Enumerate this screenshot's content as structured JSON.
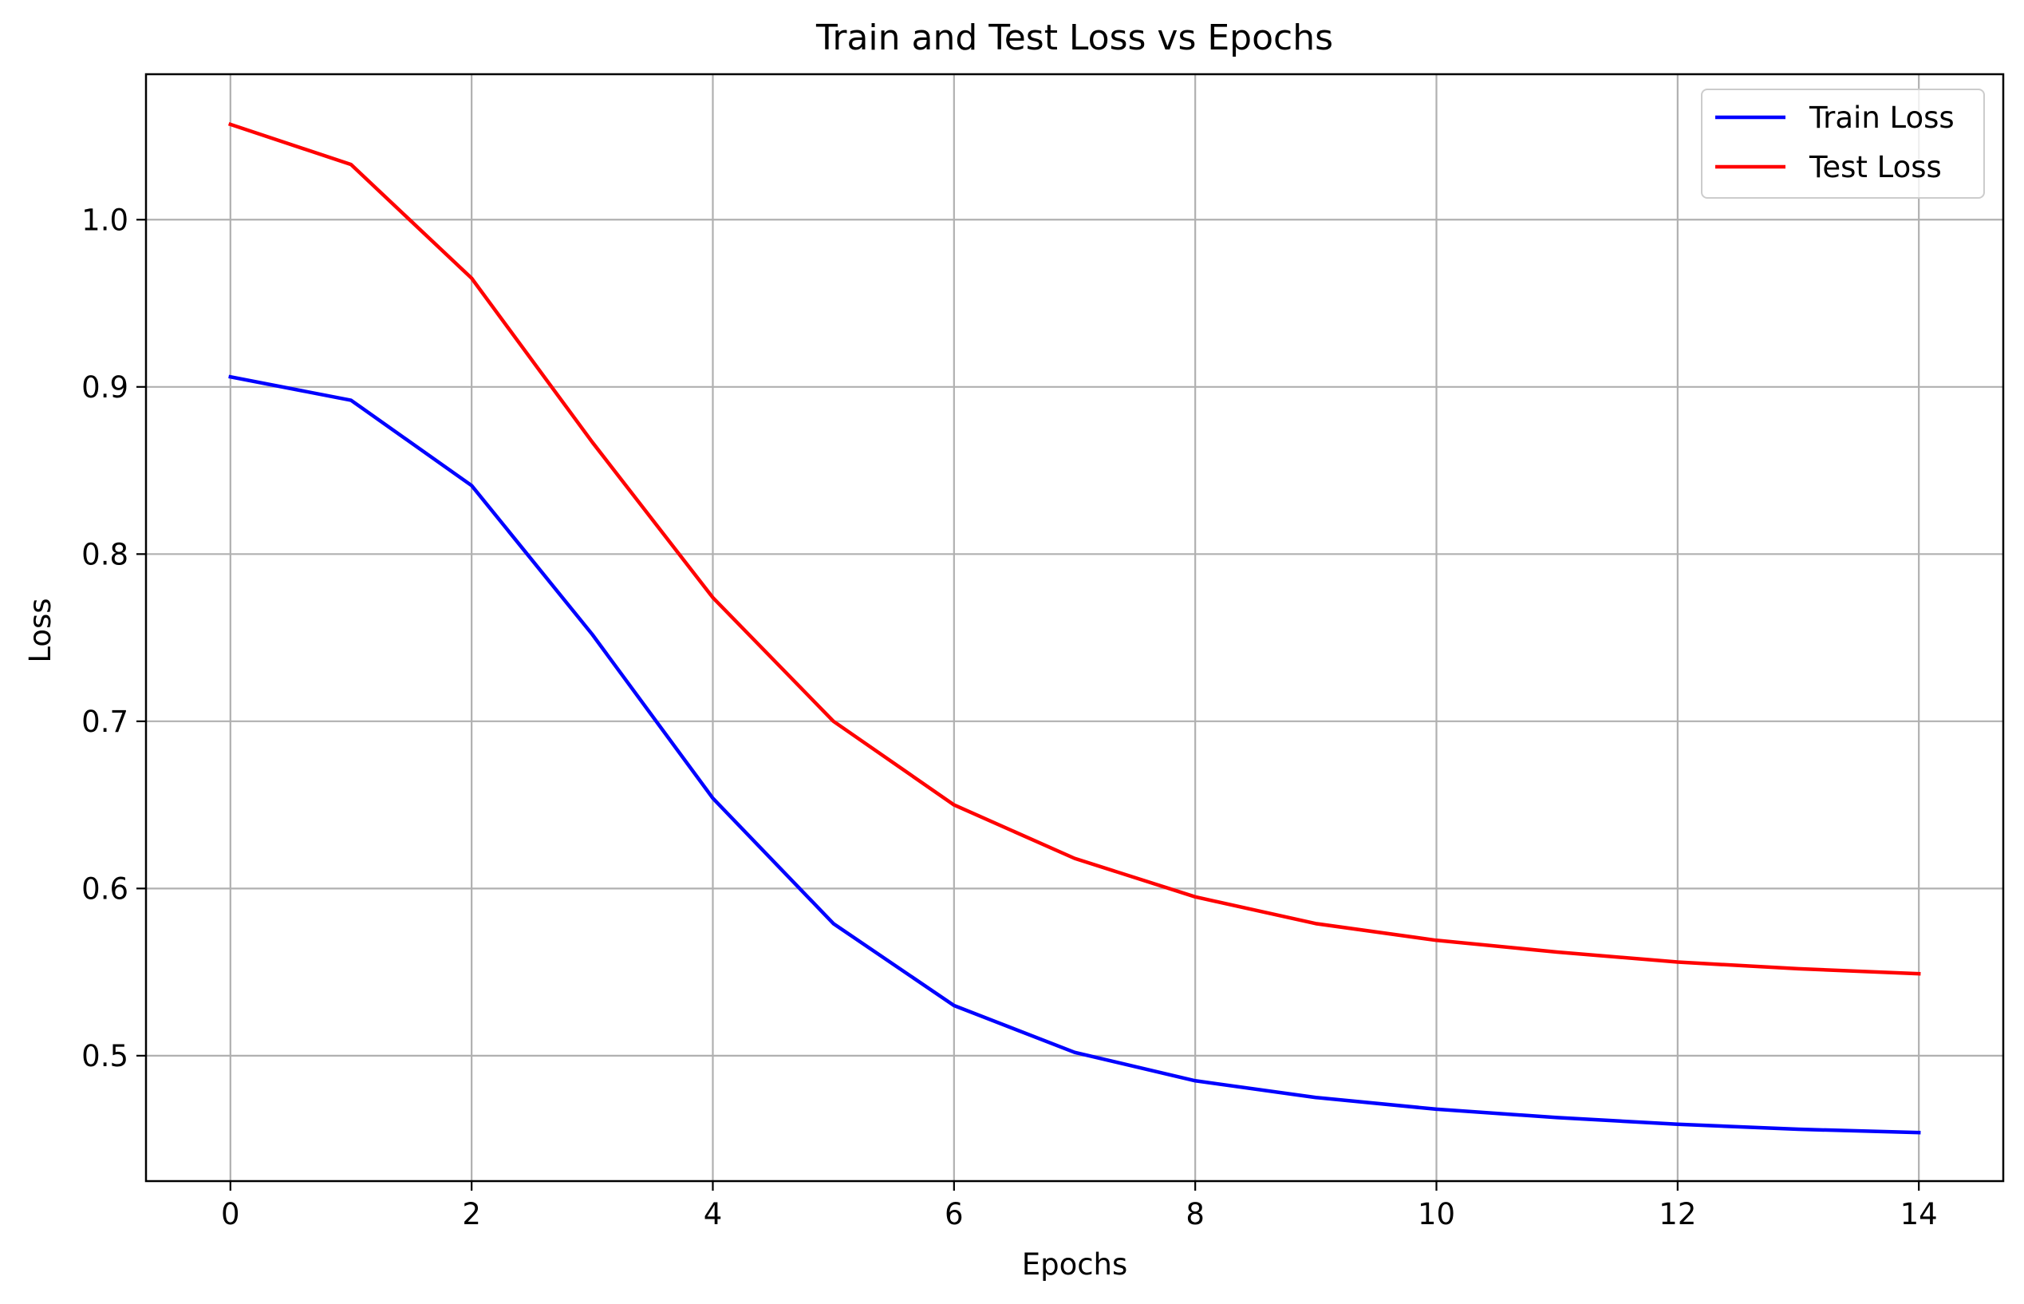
{
  "chart_data": {
    "type": "line",
    "title": "Train and Test Loss vs Epochs",
    "xlabel": "Epochs",
    "ylabel": "Loss",
    "xlim": [
      -0.7,
      14.7
    ],
    "ylim": [
      0.425,
      1.087
    ],
    "xticks": [
      0,
      2,
      4,
      6,
      8,
      10,
      12,
      14
    ],
    "yticks": [
      0.5,
      0.6,
      0.7,
      0.8,
      0.9,
      1.0
    ],
    "ytick_labels": [
      "0.5",
      "0.6",
      "0.7",
      "0.8",
      "0.9",
      "1.0"
    ],
    "grid": true,
    "legend_position": "top-right",
    "x": [
      0,
      1,
      2,
      3,
      4,
      5,
      6,
      7,
      8,
      9,
      10,
      11,
      12,
      13,
      14
    ],
    "series": [
      {
        "name": "Train Loss",
        "color": "#0000ff",
        "values": [
          0.906,
          0.892,
          0.841,
          0.752,
          0.654,
          0.579,
          0.53,
          0.502,
          0.485,
          0.475,
          0.468,
          0.463,
          0.459,
          0.456,
          0.454
        ]
      },
      {
        "name": "Test Loss",
        "color": "#ff0000",
        "values": [
          1.057,
          1.033,
          0.965,
          0.867,
          0.774,
          0.7,
          0.65,
          0.618,
          0.595,
          0.579,
          0.569,
          0.562,
          0.556,
          0.552,
          0.549
        ]
      }
    ]
  }
}
